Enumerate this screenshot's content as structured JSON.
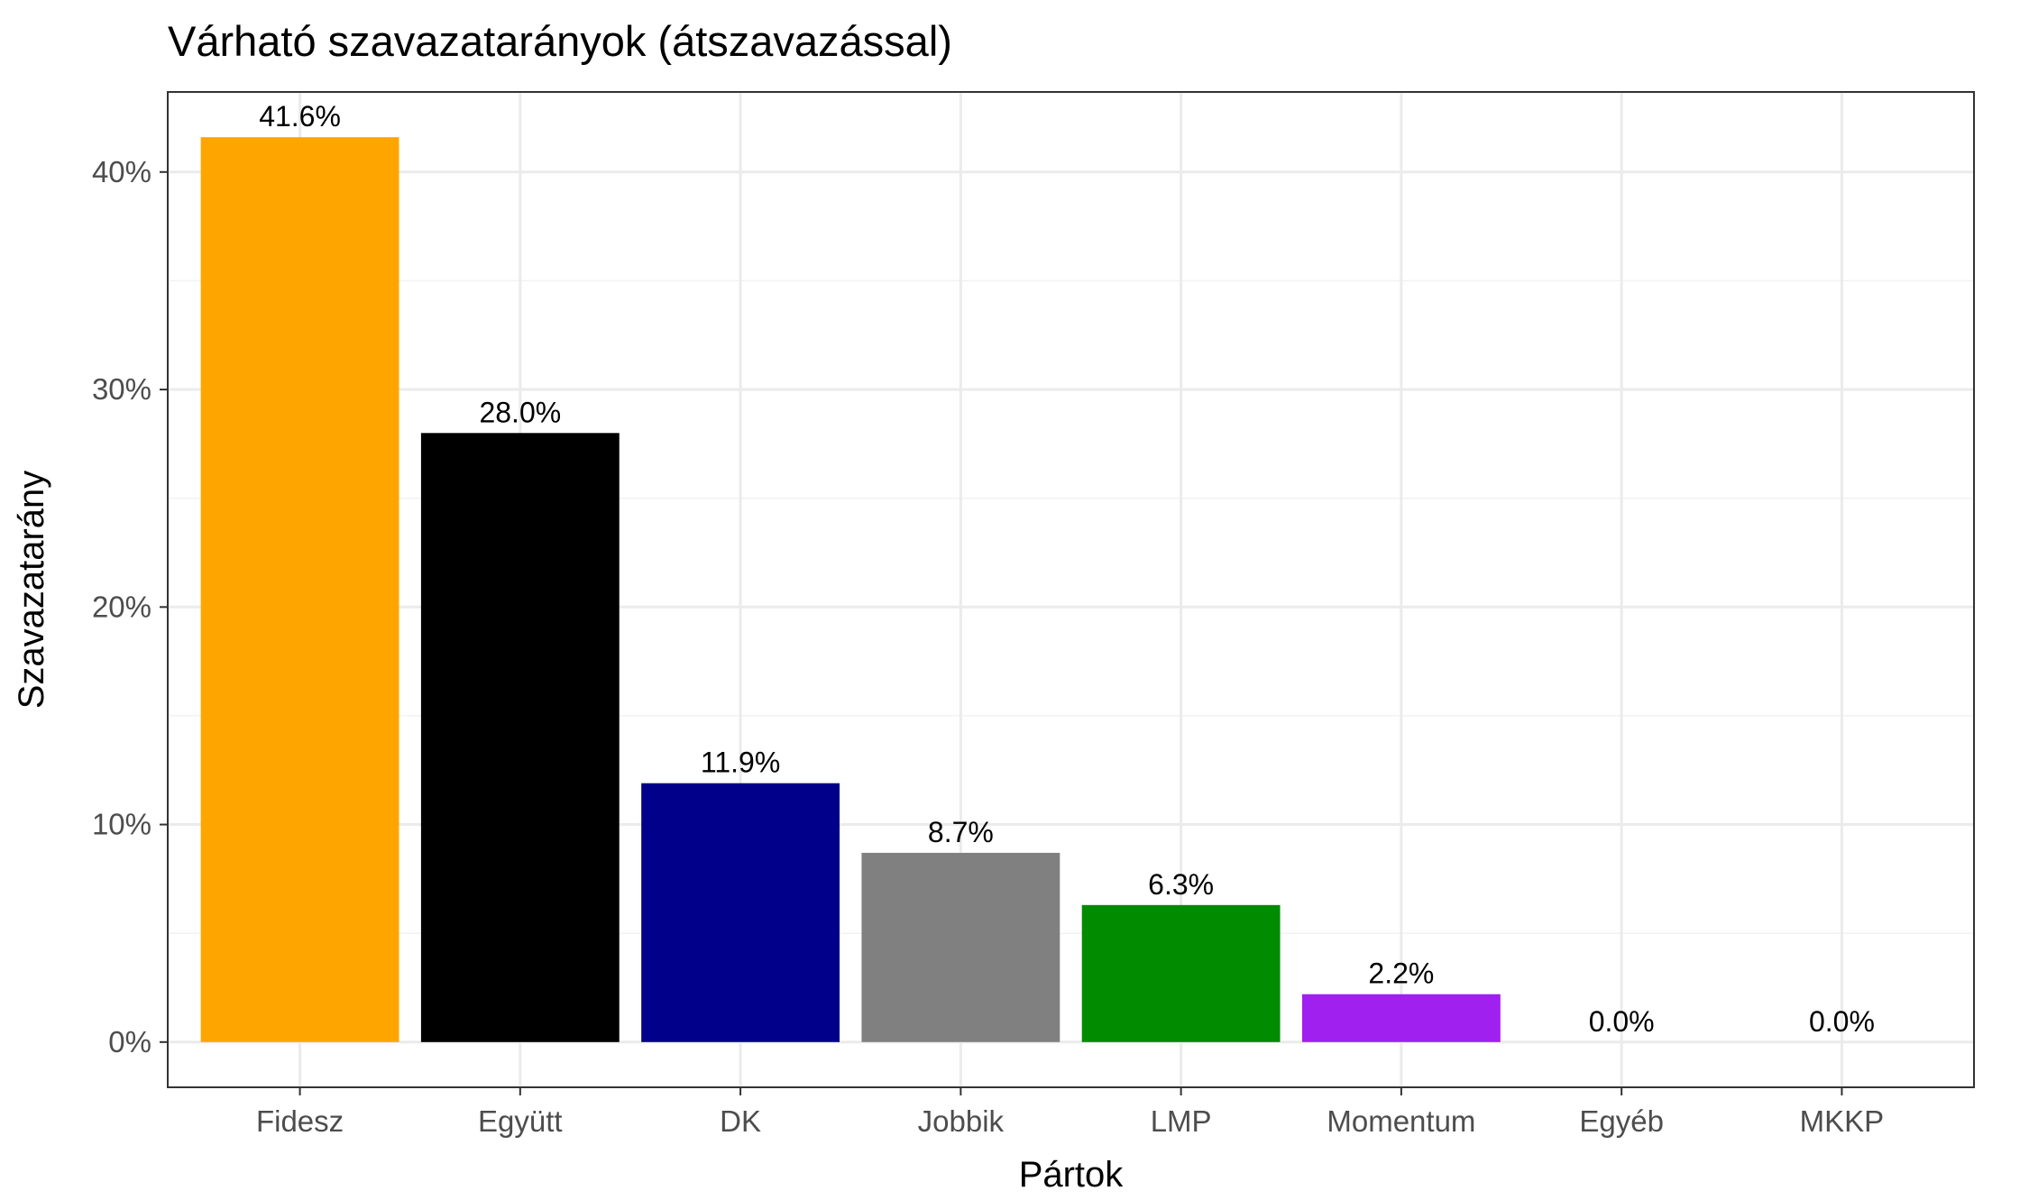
{
  "chart_data": {
    "type": "bar",
    "title": "Várható szavazatarányok (átszavazással)",
    "xlabel": "Pártok",
    "ylabel": "Szavazatarány",
    "categories": [
      "Fidesz",
      "Együtt",
      "DK",
      "Jobbik",
      "LMP",
      "Momentum",
      "Egyéb",
      "MKKP"
    ],
    "values": [
      41.6,
      28.0,
      11.9,
      8.7,
      6.3,
      2.2,
      0.0,
      0.0
    ],
    "data_labels": [
      "41.6%",
      "28.0%",
      "11.9%",
      "8.7%",
      "6.3%",
      "2.2%",
      "0.0%",
      "0.0%"
    ],
    "colors": [
      "#FFA500",
      "#000000",
      "#00008B",
      "#808080",
      "#008B00",
      "#A020F0",
      "#FFFFFF",
      "#FFFFFF"
    ],
    "y_ticks": [
      0,
      10,
      20,
      30,
      40
    ],
    "y_tick_labels": [
      "0%",
      "10%",
      "20%",
      "30%",
      "40%"
    ],
    "ylim": [
      -2.08,
      43.68
    ],
    "grid": true,
    "theme": "bw"
  }
}
